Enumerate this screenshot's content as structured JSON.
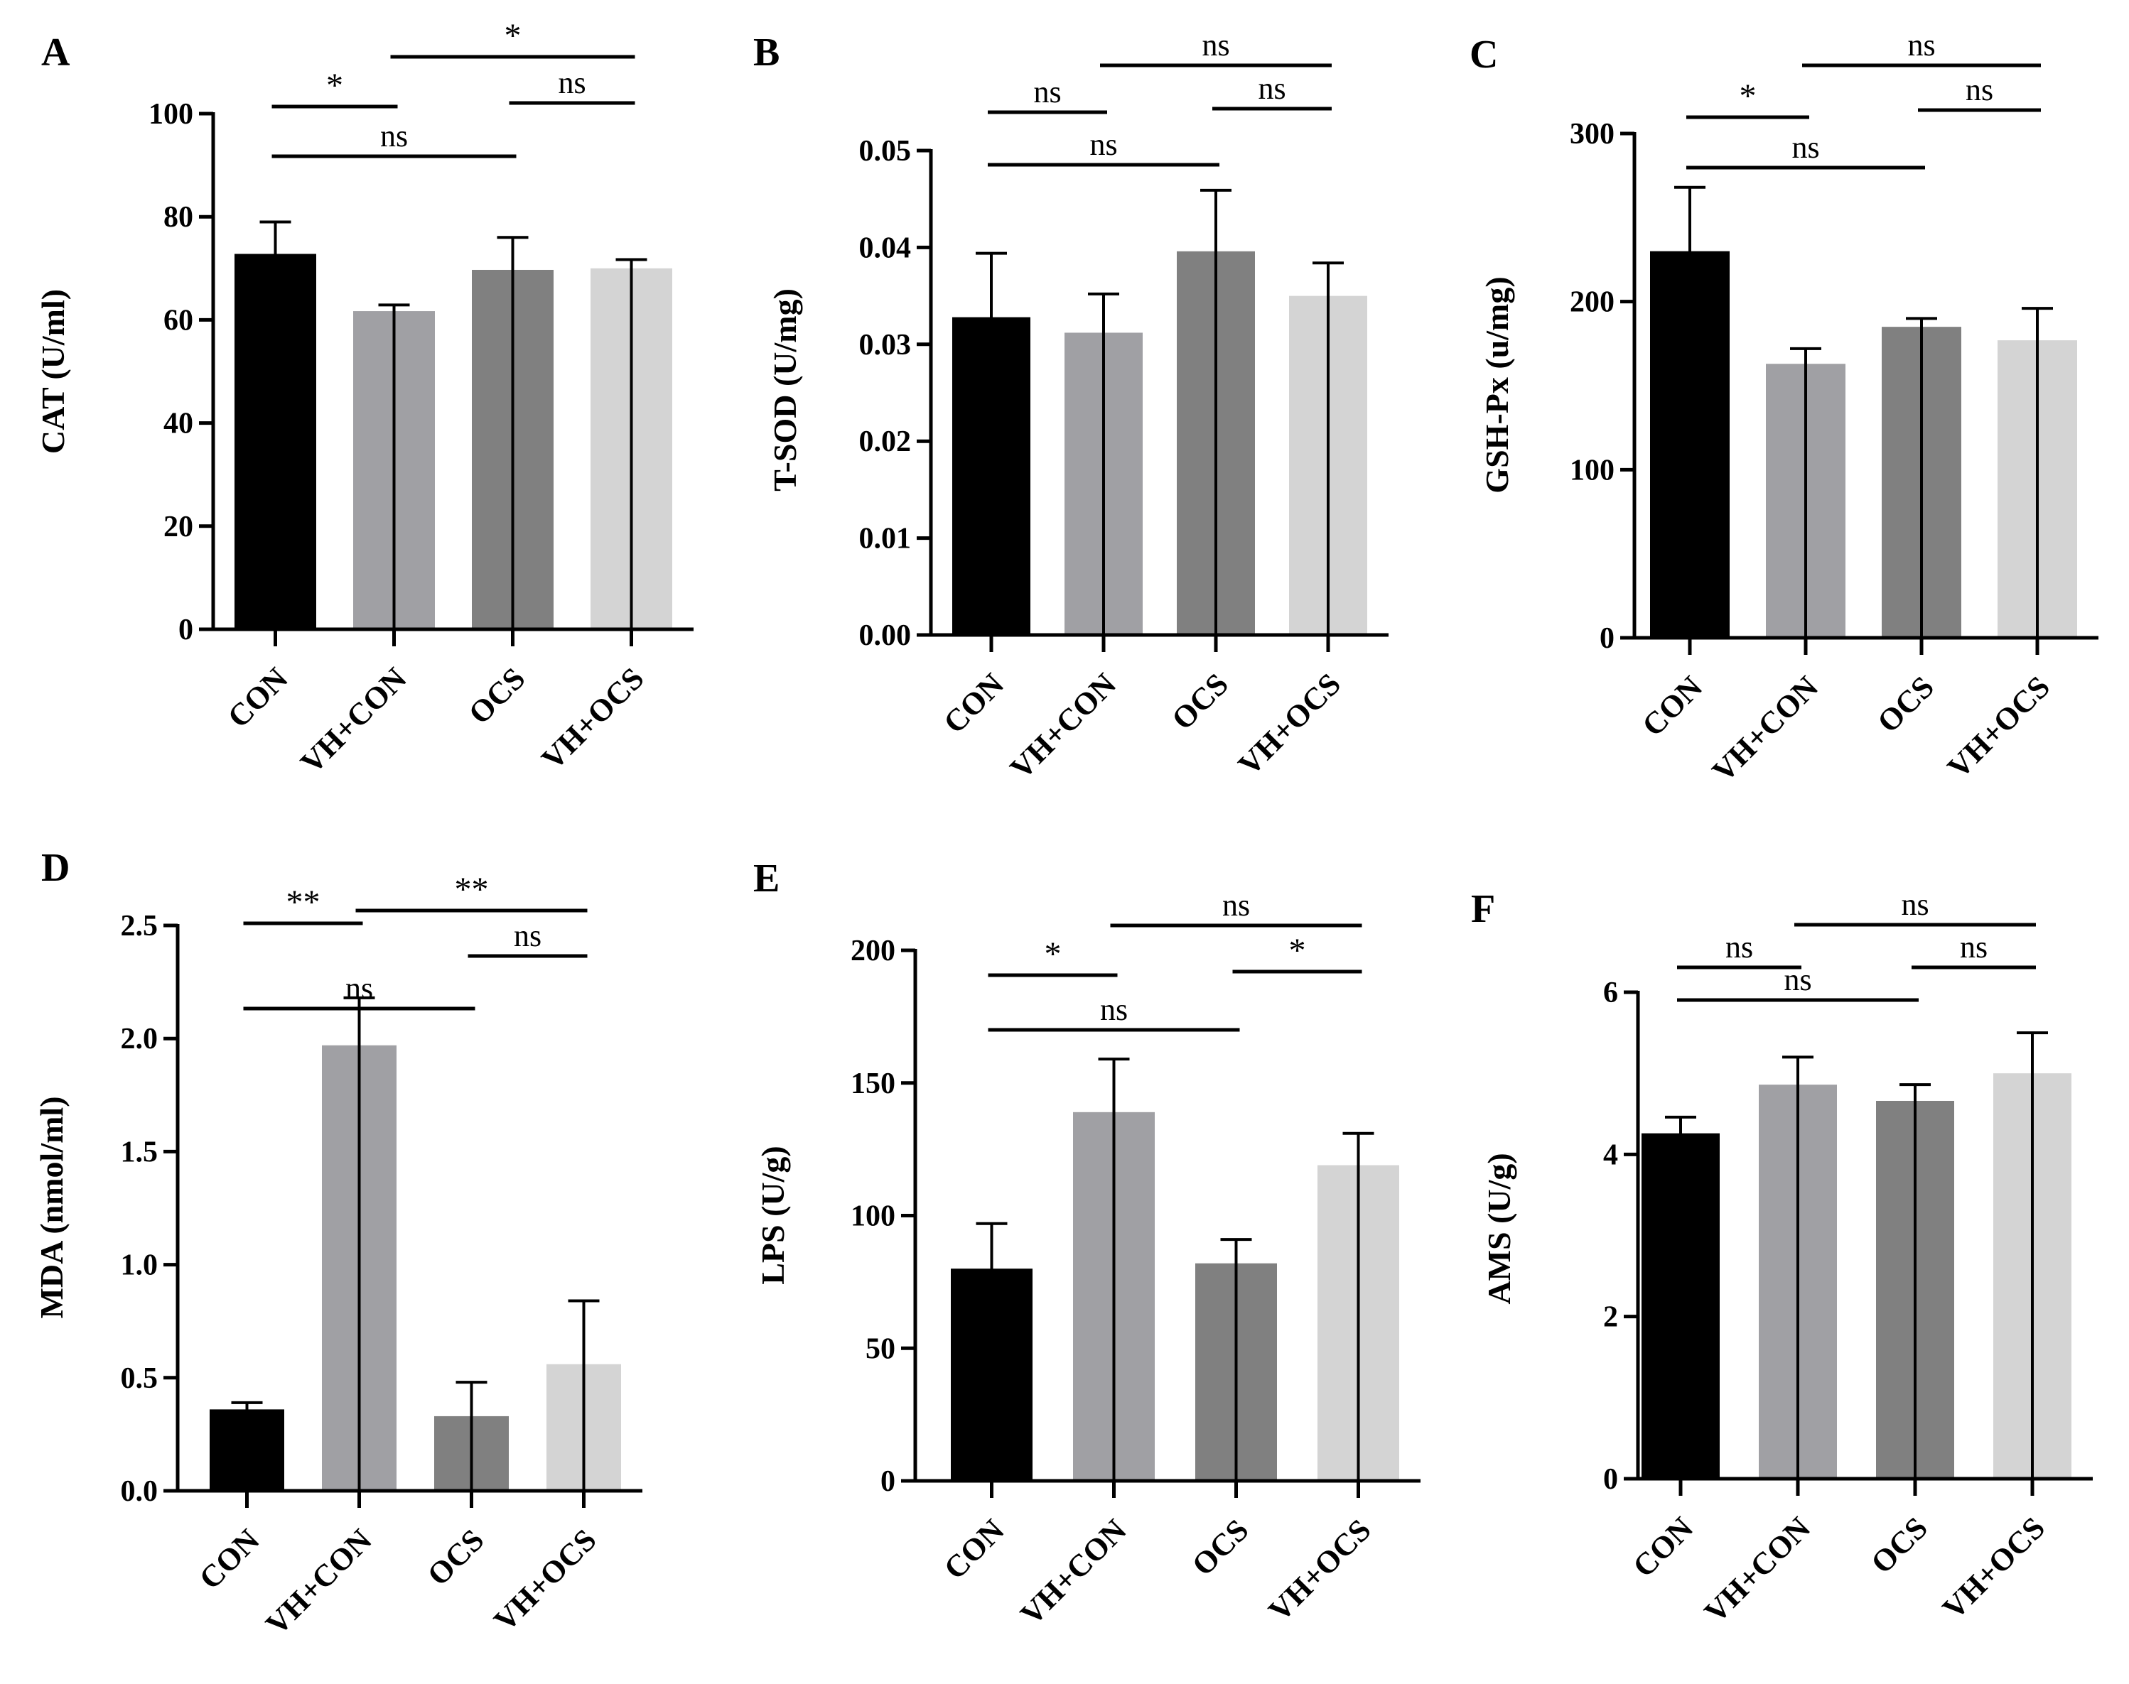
{
  "chart_data": [
    {
      "panel": "A",
      "type": "bar",
      "ylabel": "CAT (U/ml)",
      "ylim": [
        0,
        100
      ],
      "yticks": [
        0,
        20,
        40,
        60,
        80,
        100
      ],
      "ytick_labels": [
        "0",
        "20",
        "40",
        "60",
        "80",
        "100"
      ],
      "categories": [
        "CON",
        "VH+CON",
        "OCS",
        "VH+OCS"
      ],
      "values": [
        72.8,
        61.7,
        69.7,
        70.0
      ],
      "errors": [
        6.2,
        1.2,
        6.3,
        1.7
      ],
      "bar_colors": [
        "#000000",
        "#a0a0a4",
        "#808080",
        "#d4d4d4"
      ],
      "comparisons": [
        {
          "from": 0,
          "to": 1,
          "label": "*"
        },
        {
          "from": 0,
          "to": 2,
          "label": "ns"
        },
        {
          "from": 1,
          "to": 3,
          "label": "*"
        },
        {
          "from": 2,
          "to": 3,
          "label": "ns"
        }
      ]
    },
    {
      "panel": "B",
      "type": "bar",
      "ylabel": "T-SOD (U/mg)",
      "ylim": [
        0,
        0.05
      ],
      "yticks": [
        0,
        0.01,
        0.02,
        0.03,
        0.04,
        0.05
      ],
      "ytick_labels": [
        "0.00",
        "0.01",
        "0.02",
        "0.03",
        "0.04",
        "0.05"
      ],
      "categories": [
        "CON",
        "VH+CON",
        "OCS",
        "VH+OCS"
      ],
      "values": [
        0.0328,
        0.0312,
        0.0396,
        0.035
      ],
      "errors": [
        0.0066,
        0.004,
        0.0063,
        0.0034
      ],
      "bar_colors": [
        "#000000",
        "#a0a0a4",
        "#808080",
        "#d4d4d4"
      ],
      "comparisons": [
        {
          "from": 0,
          "to": 1,
          "label": "ns"
        },
        {
          "from": 0,
          "to": 2,
          "label": "ns"
        },
        {
          "from": 1,
          "to": 3,
          "label": "ns"
        },
        {
          "from": 2,
          "to": 3,
          "label": "ns"
        }
      ]
    },
    {
      "panel": "C",
      "type": "bar",
      "ylabel": "GSH-Px (u/mg)",
      "ylim": [
        0,
        300
      ],
      "yticks": [
        0,
        100,
        200,
        300
      ],
      "ytick_labels": [
        "0",
        "100",
        "200",
        "300"
      ],
      "categories": [
        "CON",
        "VH+CON",
        "OCS",
        "VH+OCS"
      ],
      "values": [
        230,
        163,
        185,
        177
      ],
      "errors": [
        38,
        9,
        5,
        19
      ],
      "bar_colors": [
        "#000000",
        "#a0a0a4",
        "#808080",
        "#d4d4d4"
      ],
      "comparisons": [
        {
          "from": 0,
          "to": 1,
          "label": "*"
        },
        {
          "from": 0,
          "to": 2,
          "label": "ns"
        },
        {
          "from": 1,
          "to": 3,
          "label": "ns"
        },
        {
          "from": 2,
          "to": 3,
          "label": "ns"
        }
      ]
    },
    {
      "panel": "D",
      "type": "bar",
      "ylabel": "MDA (nmol/ml)",
      "ylim": [
        0,
        2.5
      ],
      "yticks": [
        0,
        0.5,
        1.0,
        1.5,
        2.0,
        2.5
      ],
      "ytick_labels": [
        "0.0",
        "0.5",
        "1.0",
        "1.5",
        "2.0",
        "2.5"
      ],
      "categories": [
        "CON",
        "VH+CON",
        "OCS",
        "VH+OCS"
      ],
      "values": [
        0.36,
        1.97,
        0.33,
        0.56
      ],
      "errors": [
        0.03,
        0.21,
        0.15,
        0.28
      ],
      "bar_colors": [
        "#000000",
        "#a0a0a4",
        "#808080",
        "#d4d4d4"
      ],
      "comparisons": [
        {
          "from": 0,
          "to": 1,
          "label": "**"
        },
        {
          "from": 0,
          "to": 2,
          "label": "ns"
        },
        {
          "from": 1,
          "to": 3,
          "label": "**"
        },
        {
          "from": 2,
          "to": 3,
          "label": "ns"
        }
      ]
    },
    {
      "panel": "E",
      "type": "bar",
      "ylabel": "LPS (U/g)",
      "ylim": [
        0,
        200
      ],
      "yticks": [
        0,
        50,
        100,
        150,
        200
      ],
      "ytick_labels": [
        "0",
        "50",
        "100",
        "150",
        "200"
      ],
      "categories": [
        "CON",
        "VH+CON",
        "OCS",
        "VH+OCS"
      ],
      "values": [
        80,
        139,
        82,
        119
      ],
      "errors": [
        17,
        20,
        9,
        12
      ],
      "bar_colors": [
        "#000000",
        "#a0a0a4",
        "#808080",
        "#d4d4d4"
      ],
      "comparisons": [
        {
          "from": 0,
          "to": 1,
          "label": "*"
        },
        {
          "from": 0,
          "to": 2,
          "label": "ns"
        },
        {
          "from": 1,
          "to": 3,
          "label": "ns"
        },
        {
          "from": 2,
          "to": 3,
          "label": "*"
        }
      ]
    },
    {
      "panel": "F",
      "type": "bar",
      "ylabel": "AMS (U/g)",
      "ylim": [
        0,
        6
      ],
      "yticks": [
        0,
        2,
        4,
        6
      ],
      "ytick_labels": [
        "0",
        "2",
        "4",
        "6"
      ],
      "categories": [
        "CON",
        "VH+CON",
        "OCS",
        "VH+OCS"
      ],
      "values": [
        4.26,
        4.86,
        4.66,
        5.0
      ],
      "errors": [
        0.2,
        0.34,
        0.2,
        0.5
      ],
      "bar_colors": [
        "#000000",
        "#a0a0a4",
        "#808080",
        "#d4d4d4"
      ],
      "comparisons": [
        {
          "from": 0,
          "to": 1,
          "label": "ns"
        },
        {
          "from": 0,
          "to": 2,
          "label": "ns"
        },
        {
          "from": 1,
          "to": 3,
          "label": "ns"
        },
        {
          "from": 2,
          "to": 3,
          "label": "ns"
        }
      ]
    }
  ]
}
